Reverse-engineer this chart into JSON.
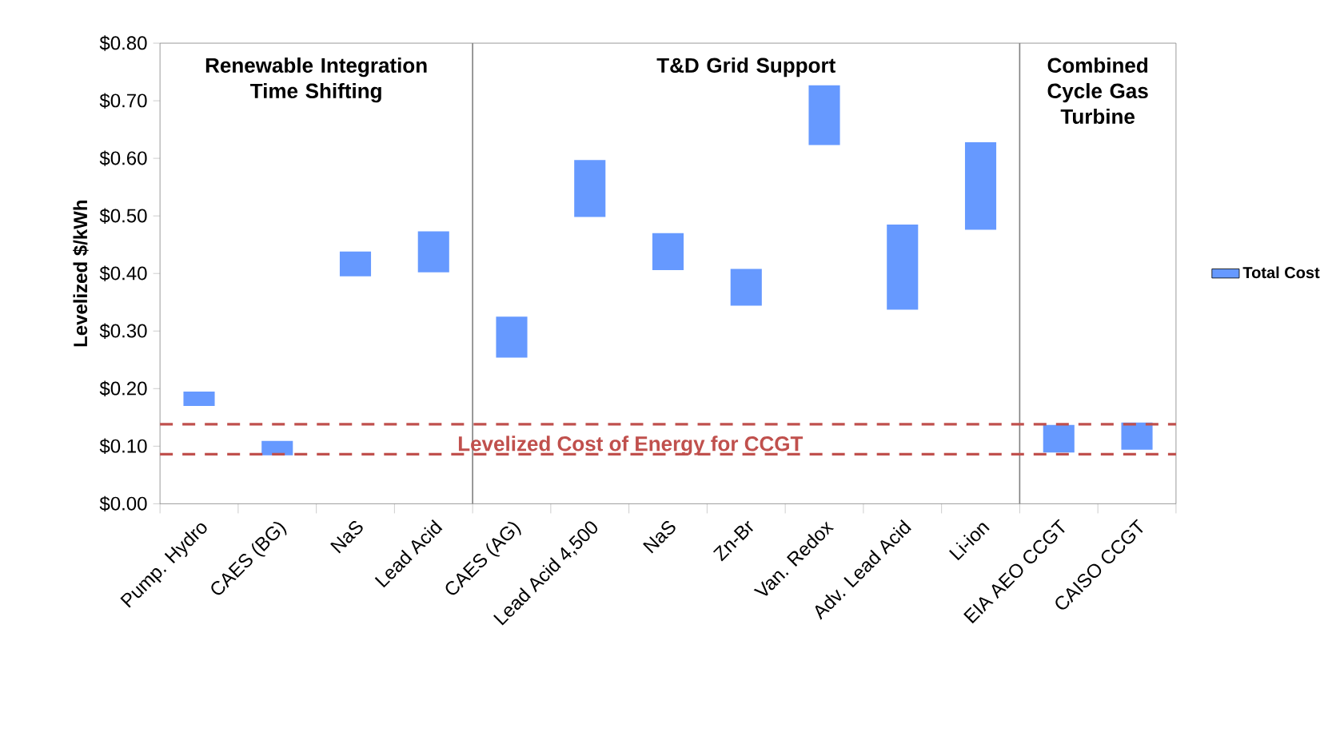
{
  "chart_data": {
    "type": "bar",
    "ylabel": "Levelized $/kWh",
    "categories": [
      "Pump. Hydro",
      "CAES (BG)",
      "NaS",
      "Lead Acid",
      "CAES (AG)",
      "Lead Acid 4,500",
      "NaS",
      "Zn-Br",
      "Van. Redox",
      "Adv. Lead Acid",
      "Li-ion",
      "EIA AEO CCGT",
      "CAISO CCGT"
    ],
    "series": [
      {
        "name": "Total Cost",
        "color": "#6699ff",
        "base": [
          0.17,
          0.084,
          0.395,
          0.402,
          0.254,
          0.498,
          0.406,
          0.344,
          0.623,
          0.337,
          0.476,
          0.089,
          0.094
        ],
        "values": [
          0.025,
          0.025,
          0.043,
          0.071,
          0.071,
          0.099,
          0.064,
          0.064,
          0.104,
          0.148,
          0.152,
          0.048,
          0.047
        ]
      }
    ],
    "ylim": [
      0,
      0.8
    ],
    "yticks": [
      {
        "value": 0,
        "label": "$0.00"
      },
      {
        "value": 0.1,
        "label": "$0.10"
      },
      {
        "value": 0.2,
        "label": "$0.20"
      },
      {
        "value": 0.3,
        "label": "$0.30"
      },
      {
        "value": 0.4,
        "label": "$0.40"
      },
      {
        "value": 0.5,
        "label": "$0.50"
      },
      {
        "value": 0.6,
        "label": "$0.60"
      },
      {
        "value": 0.7,
        "label": "$0.70"
      },
      {
        "value": 0.8,
        "label": "$0.80"
      }
    ],
    "ref_lines": [
      {
        "axis": "y",
        "value": 0.138,
        "label": "Levelized Cost of Energy for CCGT",
        "color": "#c0504d",
        "line_style": "dashed"
      },
      {
        "axis": "y",
        "value": 0.086,
        "color": "#c0504d",
        "line_style": "dashed"
      }
    ],
    "annotations": [
      "Renewable Integration Time Shifting",
      "T&D Grid Support",
      "Combined Cycle Gas Turbine"
    ],
    "legend": "right",
    "grid": false
  }
}
